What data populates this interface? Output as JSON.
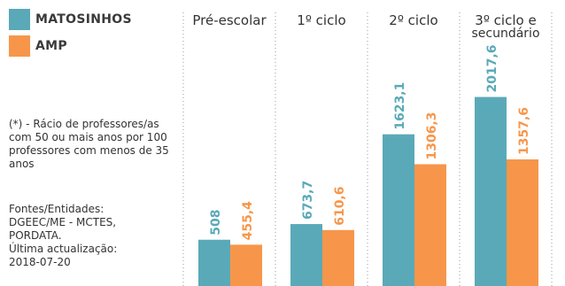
{
  "legend": {
    "items": [
      {
        "label": "MATOSINHOS",
        "color": "#5aa9b8"
      },
      {
        "label": "AMP",
        "color": "#f7964a"
      }
    ]
  },
  "note": "(*) - Rácio de professores/as com 50 ou mais anos por 100 professores com menos de 35 anos",
  "sources": "Fontes/Entidades:\nDGEEC/ME - MCTES,\nPORDATA.\nÚltima actualização:\n2018-07-20",
  "chart_data": {
    "type": "bar",
    "categories": [
      "Pré-escolar",
      "1º ciclo",
      "2º ciclo",
      "3º ciclo e secundário"
    ],
    "category_lines": [
      [
        "Pré-escolar"
      ],
      [
        "1º ciclo"
      ],
      [
        "2º ciclo"
      ],
      [
        "3º ciclo e",
        "secundário"
      ]
    ],
    "series": [
      {
        "name": "MATOSINHOS",
        "values": [
          508,
          673.7,
          1623.1,
          2017.6
        ],
        "labels": [
          "508",
          "673,7",
          "1623,1",
          "2017,6"
        ],
        "color": "#5aa9b8"
      },
      {
        "name": "AMP",
        "values": [
          455.4,
          610.6,
          1306.3,
          1357.6
        ],
        "labels": [
          "455,4",
          "610,6",
          "1306,3",
          "1357,6"
        ],
        "color": "#f7964a"
      }
    ],
    "ylim": [
      0,
      2200
    ],
    "grid": false,
    "legend_position": "top-left"
  }
}
